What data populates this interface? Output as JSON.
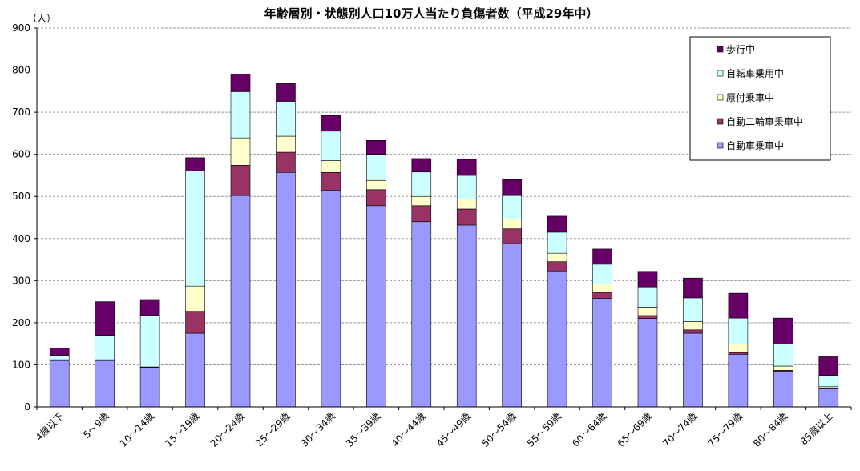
{
  "chart_data": {
    "type": "bar",
    "stacked": true,
    "title": "年齢層別・状態別人口10万人当たり負傷者数（平成29年中）",
    "yunit": "（人）",
    "ylim": [
      0,
      900
    ],
    "yticks": [
      0,
      100,
      200,
      300,
      400,
      500,
      600,
      700,
      800,
      900
    ],
    "grid": true,
    "legend_position": "top-right",
    "categories": [
      "4歳以下",
      "5～9歳",
      "10～14歳",
      "15～19歳",
      "20～24歳",
      "25～29歳",
      "30～34歳",
      "35～39歳",
      "40～44歳",
      "45～49歳",
      "50～54歳",
      "55～59歳",
      "60～64歳",
      "65～69歳",
      "70～74歳",
      "75～79歳",
      "80～84歳",
      "85歳以上"
    ],
    "series": [
      {
        "name": "自動車乗車中",
        "color": "#9999ff",
        "values": [
          110,
          110,
          93,
          175,
          502,
          557,
          515,
          478,
          440,
          432,
          388,
          323,
          258,
          210,
          175,
          125,
          85,
          43
        ]
      },
      {
        "name": "自動二輪車乗車中",
        "color": "#993366",
        "values": [
          1,
          1,
          1,
          52,
          72,
          48,
          42,
          38,
          38,
          38,
          35,
          22,
          14,
          7,
          8,
          4,
          2,
          1
        ]
      },
      {
        "name": "原付乗車中",
        "color": "#ffffcc",
        "values": [
          1,
          1,
          1,
          60,
          65,
          38,
          28,
          22,
          22,
          24,
          23,
          20,
          20,
          20,
          20,
          20,
          10,
          4
        ]
      },
      {
        "name": "自転車乗用中",
        "color": "#ccffff",
        "values": [
          10,
          58,
          122,
          273,
          110,
          83,
          70,
          62,
          58,
          56,
          56,
          50,
          47,
          48,
          56,
          62,
          52,
          27
        ]
      },
      {
        "name": "歩行中",
        "color": "#660066",
        "values": [
          18,
          80,
          38,
          32,
          42,
          42,
          37,
          33,
          32,
          38,
          38,
          38,
          36,
          37,
          47,
          59,
          62,
          44
        ]
      }
    ]
  }
}
